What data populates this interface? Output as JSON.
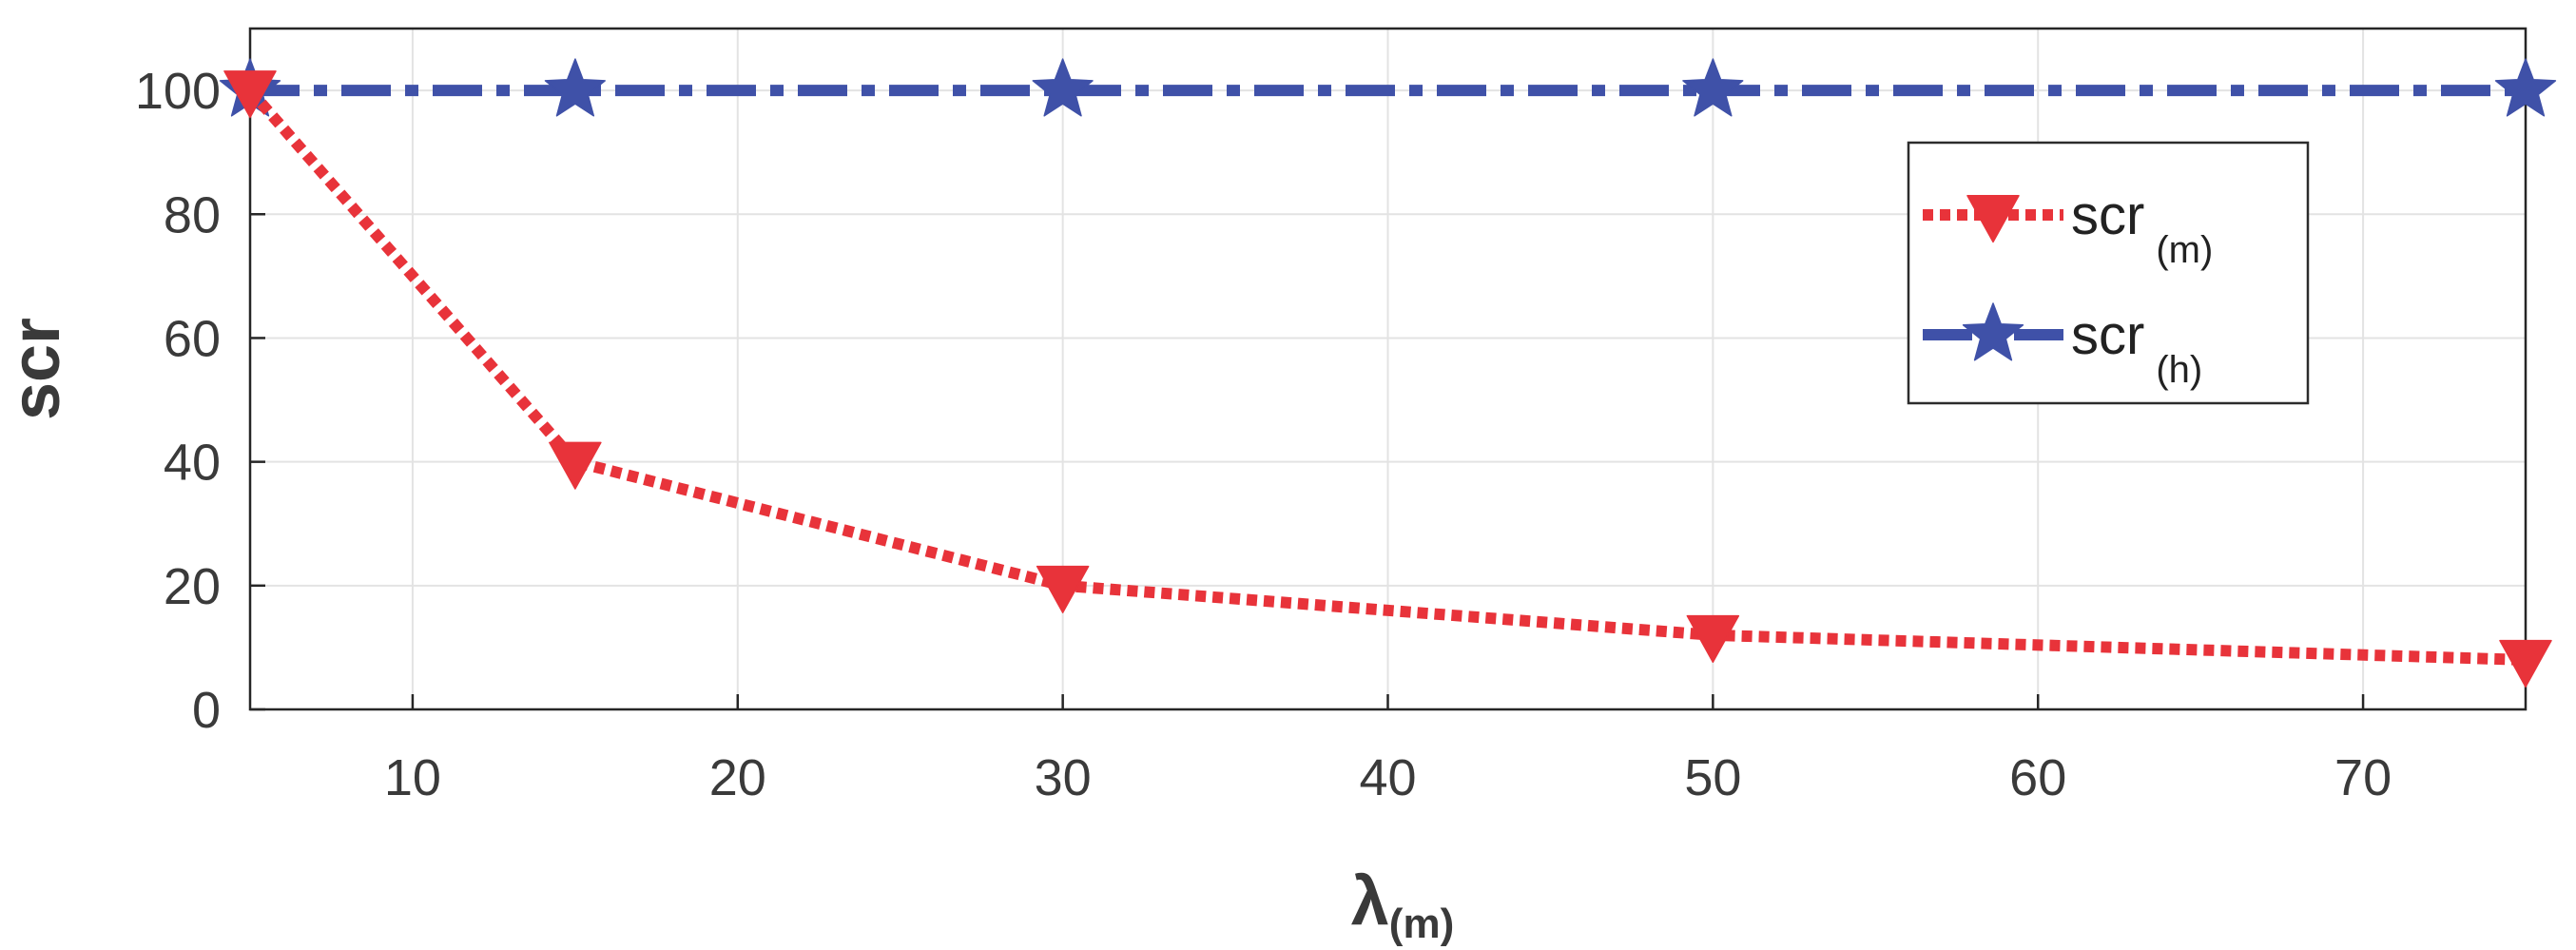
{
  "chart_data": {
    "type": "line",
    "xlabel": "λ",
    "xlabel_sub": "(m)",
    "ylabel": "scr",
    "xlim": [
      5,
      75
    ],
    "ylim": [
      0,
      110
    ],
    "x_ticks": [
      "10",
      "20",
      "30",
      "40",
      "50",
      "60",
      "70"
    ],
    "y_ticks": [
      "0",
      "20",
      "40",
      "60",
      "80",
      "100"
    ],
    "grid": true,
    "legend_position": "top-right",
    "x": [
      5,
      15,
      30,
      50,
      75
    ],
    "series": [
      {
        "name": "scr",
        "name_sub": "(m)",
        "values": [
          100,
          40,
          20,
          12,
          8
        ],
        "color": "#e8333a",
        "marker": "triangle-down",
        "line_style": "dotted"
      },
      {
        "name": "scr",
        "name_sub": "(h)",
        "values": [
          100,
          100,
          100,
          100,
          100
        ],
        "color": "#3f51a8",
        "marker": "star",
        "line_style": "dash-dot"
      }
    ]
  }
}
